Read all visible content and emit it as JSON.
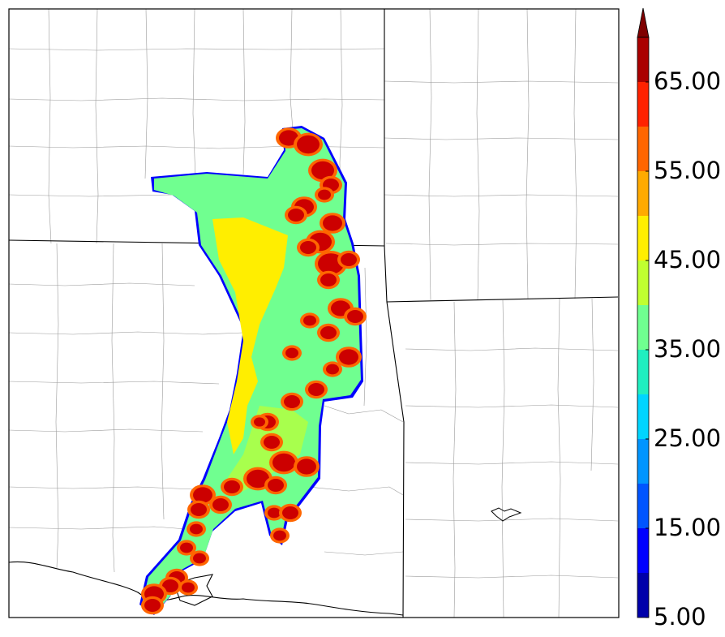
{
  "colorbar": {
    "labels": [
      "5.00",
      "15.00",
      "25.00",
      "35.00",
      "45.00",
      "55.00",
      "65.00"
    ],
    "levels": [
      5,
      10,
      15,
      20,
      25,
      30,
      35,
      40,
      45,
      50,
      55,
      60,
      65,
      70
    ],
    "colors": [
      "#0000aa",
      "#0000ff",
      "#0055ff",
      "#0095ff",
      "#00d5ff",
      "#20eec0",
      "#70ff90",
      "#c0ff30",
      "#ffee00",
      "#ffaa00",
      "#ff6600",
      "#ff2200",
      "#aa0000"
    ],
    "extend_color": "#7f0000",
    "extend": "max"
  },
  "map": {
    "field_colors": {
      "background": "#ffffff",
      "state_border": "#000000",
      "county_border": "#9a9a9a",
      "low": "#70ff90",
      "mid": "#ffee00",
      "high": "#ff6600",
      "peak": "#cc0000",
      "edge": "#0000ff"
    }
  }
}
